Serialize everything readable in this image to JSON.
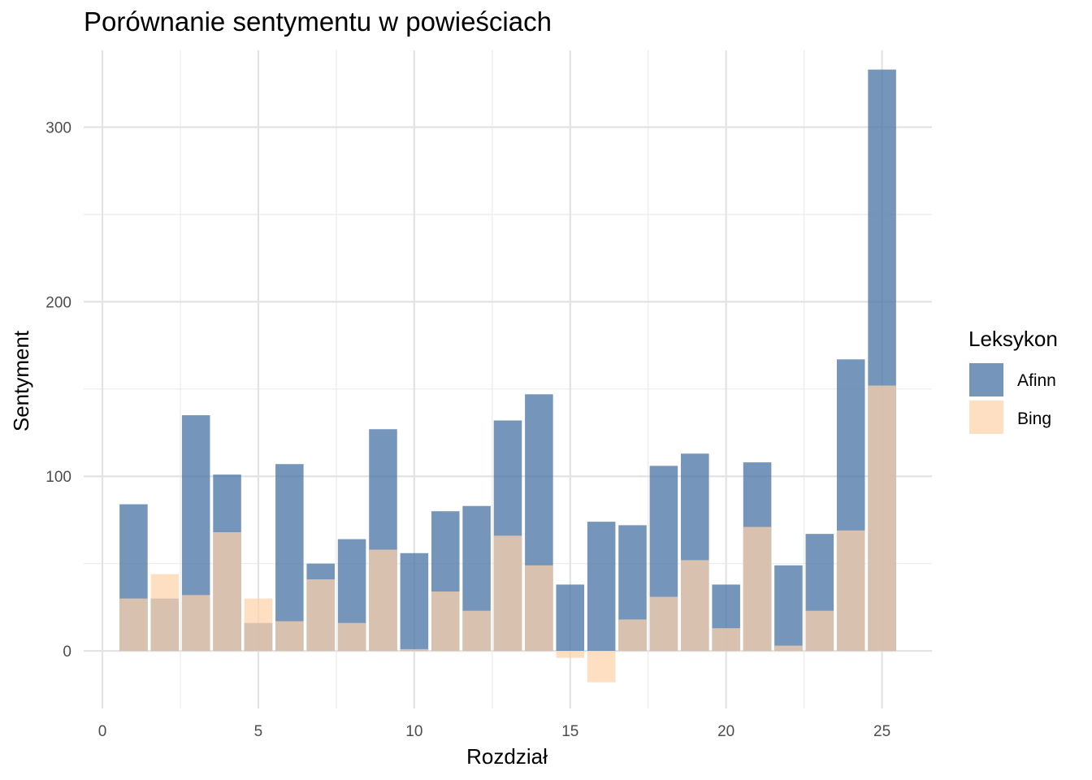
{
  "chart_data": {
    "type": "bar",
    "title": "Porównanie sentymentu w powieściach",
    "xlabel": "Rozdział",
    "ylabel": "Sentyment",
    "xlim": [
      -0.6,
      26.6
    ],
    "ylim": [
      -33,
      344
    ],
    "x_ticks": [
      0,
      5,
      10,
      15,
      20,
      25
    ],
    "y_ticks": [
      0,
      100,
      200,
      300
    ],
    "x_tick_labels": [
      "0",
      "5",
      "10",
      "15",
      "20",
      "25"
    ],
    "y_tick_labels": [
      "0",
      "100",
      "200",
      "300"
    ],
    "grid": true,
    "legend": {
      "title": "Leksykon",
      "position": "right"
    },
    "x": [
      1,
      2,
      3,
      4,
      5,
      6,
      7,
      8,
      9,
      10,
      11,
      12,
      13,
      14,
      15,
      16,
      17,
      18,
      19,
      20,
      21,
      22,
      23,
      24,
      25
    ],
    "series": [
      {
        "name": "Afinn",
        "color": "#4E79A7",
        "values": [
          84,
          30,
          135,
          101,
          16,
          107,
          50,
          64,
          127,
          56,
          80,
          83,
          132,
          147,
          38,
          74,
          72,
          106,
          113,
          38,
          108,
          49,
          67,
          167,
          333
        ]
      },
      {
        "name": "Bing",
        "color": "#FFD3AB",
        "values": [
          30,
          44,
          32,
          68,
          30,
          17,
          41,
          16,
          58,
          1,
          34,
          23,
          66,
          49,
          -4,
          -18,
          18,
          31,
          52,
          13,
          71,
          3,
          23,
          69,
          152
        ]
      }
    ]
  }
}
